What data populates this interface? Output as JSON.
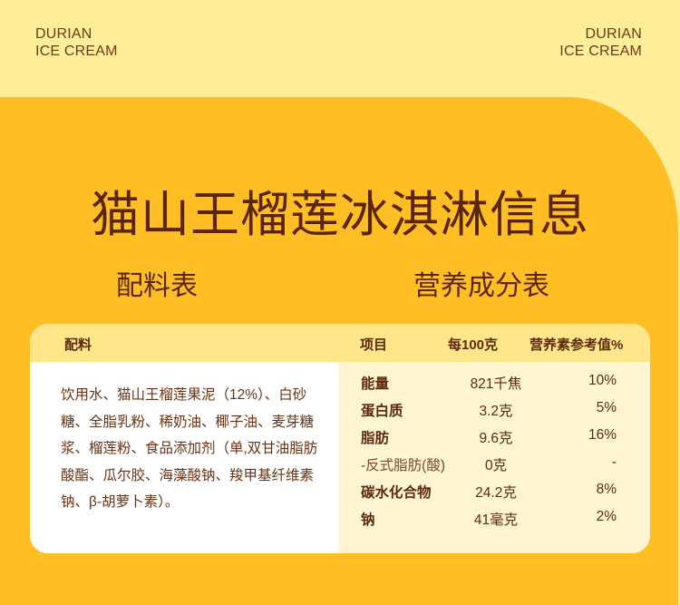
{
  "brand": {
    "line1": "DURIAN",
    "line2": "ICE CREAM"
  },
  "title": "猫山王榴莲冰淇淋信息",
  "sections": {
    "ingredients": "配料表",
    "nutrition": "营养成分表"
  },
  "table": {
    "headers": {
      "ingredients": "配料",
      "item": "项目",
      "per100g": "每100克",
      "nrv": "营养素参考值%"
    },
    "ingredients_text": "饮用水、猫山王榴莲果泥（12%）、白砂糖、全脂乳粉、稀奶油、椰子油、麦芽糖浆、榴莲粉、食品添加剂（单,双甘油脂肪酸酯、瓜尔胶、海藻酸钠、羧甲基纤维素钠、β-胡萝卜素）。",
    "rows": [
      {
        "item": "能量",
        "value": "821千焦",
        "nrv": "10%"
      },
      {
        "item": "蛋白质",
        "value": "3.2克",
        "nrv": "5%"
      },
      {
        "item": "脂肪",
        "value": "9.6克",
        "nrv": "16%"
      },
      {
        "item": "-反式脂肪(酸)",
        "value": "0克",
        "nrv": "-"
      },
      {
        "item": "碳水化合物",
        "value": "24.2克",
        "nrv": "8%"
      },
      {
        "item": "钠",
        "value": "41毫克",
        "nrv": "2%"
      }
    ]
  },
  "colors": {
    "background": "#FFEE98",
    "accent": "#FFBF24",
    "text": "#5E2A0C",
    "header": "#FFE68A"
  }
}
